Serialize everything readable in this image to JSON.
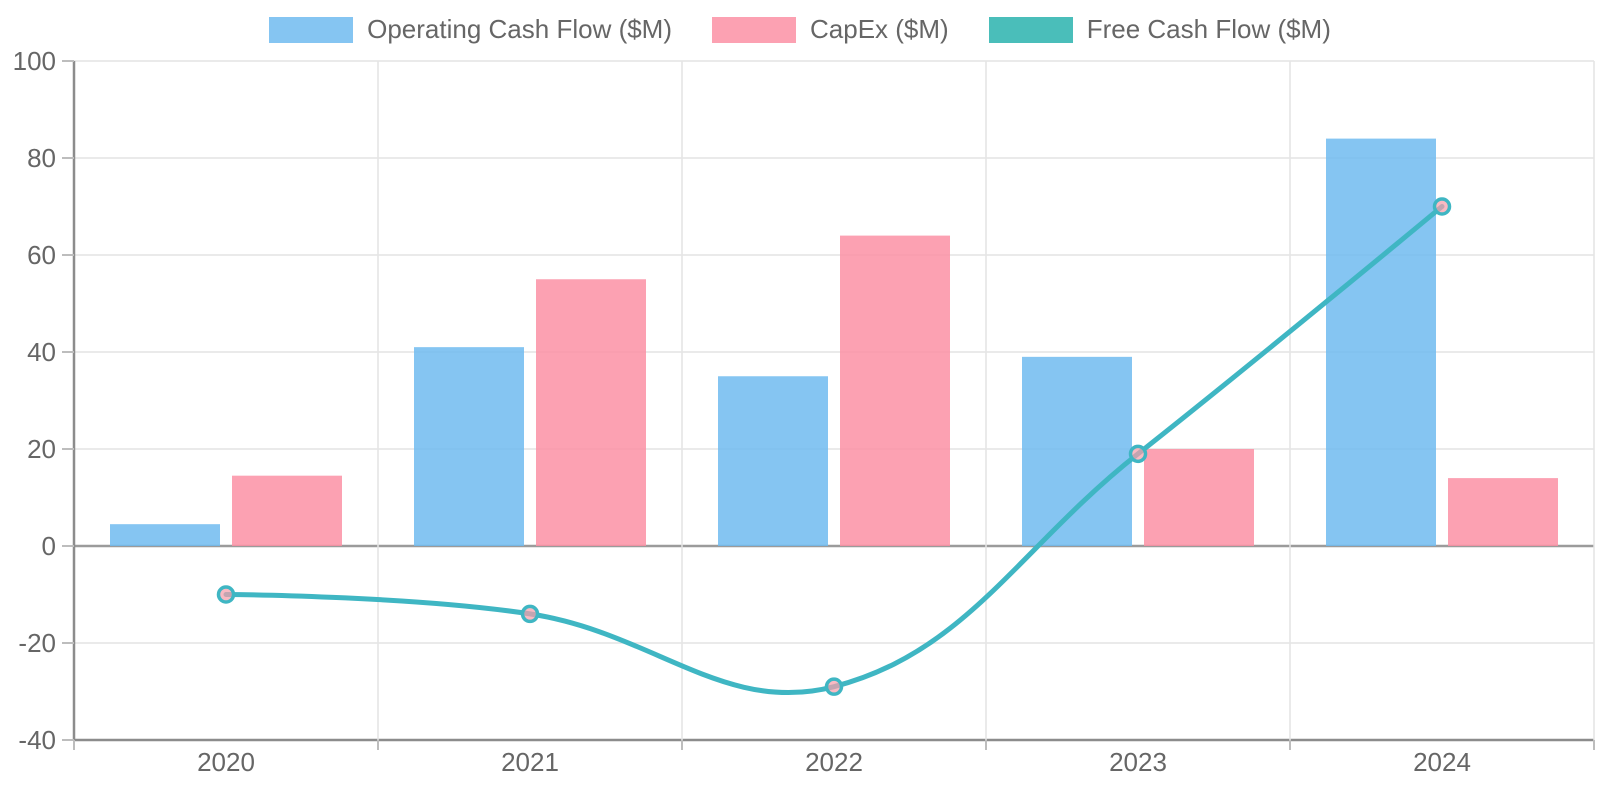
{
  "chart_data": {
    "type": "bar",
    "subtype": "grouped-bars-with-line-overlay",
    "title": "",
    "xlabel": "",
    "ylabel": "",
    "categories": [
      "2020",
      "2021",
      "2022",
      "2023",
      "2024"
    ],
    "series": [
      {
        "name": "Operating Cash Flow ($M)",
        "type": "bar",
        "color": "rgba(112,187,240,0.85)",
        "values": [
          4.5,
          41,
          35,
          39,
          84
        ]
      },
      {
        "name": "CapEx ($M)",
        "type": "bar",
        "color": "rgba(251,144,164,0.85)",
        "values": [
          14.5,
          55,
          64,
          20,
          14
        ]
      },
      {
        "name": "Free Cash Flow ($M)",
        "type": "line",
        "color": "#3FB6C3",
        "legend_color": "#4ABEBA",
        "marker_fill": "rgba(246,158,170,0.72)",
        "line_tension": 0.4,
        "values": [
          -10,
          -14,
          -29,
          19,
          70
        ]
      }
    ],
    "ylim": [
      -40,
      100
    ],
    "yticks": [
      100,
      80,
      60,
      40,
      20,
      0,
      -20,
      -40
    ],
    "grid": true,
    "legend_position": "top"
  },
  "axis_style": {
    "tick_text_color": "#666666",
    "gridline_color": "#E4E4E4",
    "zero_line_color": "#9B9B9B",
    "axis_line_color": "#8C8C8C",
    "tick_mark_color": "#BDBDBD"
  }
}
